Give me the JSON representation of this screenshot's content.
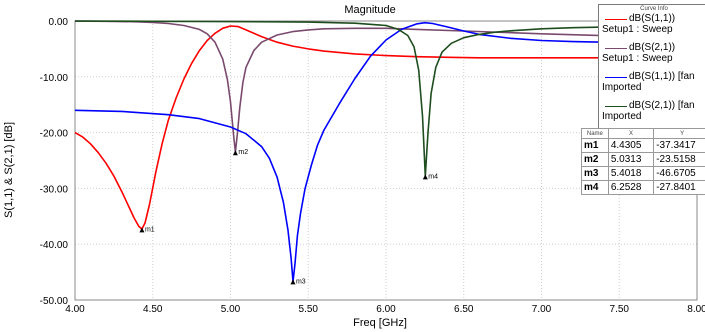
{
  "chart_data": {
    "type": "line",
    "title": "Magnitude",
    "xlabel": "Freq [GHz]",
    "ylabel": "S(1,1) & S(2,1) [dB]",
    "xlim": [
      4.0,
      8.0
    ],
    "ylim": [
      -50.0,
      0.0
    ],
    "x_ticks": [
      "4.00",
      "4.50",
      "5.00",
      "5.50",
      "6.00",
      "6.50",
      "7.00",
      "7.50",
      "8.00"
    ],
    "y_ticks": [
      "0.00",
      "-10.00",
      "-20.00",
      "-30.00",
      "-40.00",
      "-50.00"
    ],
    "grid": true,
    "legend_position": "top-right",
    "legend_title": "Curve Info",
    "series": [
      {
        "name": "dB(S(1,1))",
        "sub": "Setup1 : Sweep",
        "color": "#ff0000",
        "x": [
          4.0,
          4.05,
          4.1,
          4.15,
          4.2,
          4.25,
          4.3,
          4.35,
          4.38,
          4.41,
          4.4305,
          4.45,
          4.48,
          4.52,
          4.56,
          4.6,
          4.65,
          4.7,
          4.75,
          4.8,
          4.85,
          4.9,
          4.95,
          5.0,
          5.05,
          5.1,
          5.2,
          5.3,
          5.4,
          5.5,
          5.6,
          5.8,
          6.0,
          6.2,
          6.4,
          6.6,
          6.8,
          7.0,
          7.2,
          7.4,
          7.6,
          7.8,
          8.0
        ],
        "y": [
          -20.0,
          -20.8,
          -22.0,
          -23.6,
          -25.5,
          -27.8,
          -30.5,
          -33.5,
          -35.3,
          -36.8,
          -37.3,
          -36.2,
          -32.8,
          -27.0,
          -22.0,
          -17.8,
          -13.8,
          -10.4,
          -7.6,
          -5.3,
          -3.5,
          -2.2,
          -1.3,
          -0.9,
          -1.0,
          -1.6,
          -2.8,
          -3.8,
          -4.5,
          -5.0,
          -5.4,
          -5.9,
          -6.2,
          -6.4,
          -6.5,
          -6.6,
          -6.6,
          -6.6,
          -6.6,
          -6.6,
          -6.6,
          -6.6,
          -6.6
        ]
      },
      {
        "name": "dB(S(2,1))",
        "sub": "Setup1 : Sweep",
        "color": "#7a4a6e",
        "x": [
          4.0,
          4.2,
          4.4,
          4.5,
          4.6,
          4.7,
          4.8,
          4.85,
          4.9,
          4.95,
          4.98,
          5.0,
          5.02,
          5.0313,
          5.045,
          5.06,
          5.08,
          5.1,
          5.15,
          5.2,
          5.3,
          5.4,
          5.5,
          5.6,
          5.8,
          6.0,
          6.2,
          6.5,
          7.0,
          7.5,
          8.0
        ],
        "y": [
          -0.02,
          -0.05,
          -0.15,
          -0.25,
          -0.45,
          -0.8,
          -1.5,
          -2.3,
          -3.8,
          -6.8,
          -10.5,
          -14.5,
          -20.5,
          -23.5,
          -20.0,
          -15.5,
          -11.0,
          -8.3,
          -5.3,
          -3.8,
          -2.5,
          -1.9,
          -1.6,
          -1.4,
          -1.3,
          -1.3,
          -1.5,
          -1.8,
          -2.3,
          -2.7,
          -3.0
        ]
      },
      {
        "name": "dB(S(1,1)) [fan",
        "sub": "Imported",
        "color": "#0000ff",
        "x": [
          4.0,
          4.3,
          4.6,
          4.8,
          5.0,
          5.1,
          5.2,
          5.25,
          5.3,
          5.34,
          5.37,
          5.39,
          5.4018,
          5.415,
          5.43,
          5.45,
          5.48,
          5.52,
          5.56,
          5.6,
          5.7,
          5.8,
          5.9,
          6.0,
          6.1,
          6.2,
          6.25,
          6.3,
          6.4,
          6.5,
          6.6,
          6.8,
          7.0,
          7.2,
          7.4,
          7.6,
          7.8,
          8.0
        ],
        "y": [
          -16.0,
          -16.2,
          -16.8,
          -17.5,
          -19.0,
          -20.2,
          -22.5,
          -24.6,
          -28.0,
          -32.5,
          -37.5,
          -42.5,
          -46.7,
          -43.5,
          -38.5,
          -34.5,
          -30.0,
          -25.8,
          -22.2,
          -19.6,
          -14.8,
          -10.3,
          -6.3,
          -3.4,
          -1.5,
          -0.5,
          -0.3,
          -0.45,
          -1.1,
          -1.8,
          -2.4,
          -3.1,
          -3.5,
          -3.7,
          -3.8,
          -3.8,
          -3.8,
          -3.8
        ]
      },
      {
        "name": "dB(S(2,1)) [fan",
        "sub": "Imported",
        "color": "#1e4d1e",
        "x": [
          4.0,
          4.5,
          5.0,
          5.5,
          5.8,
          6.0,
          6.08,
          6.14,
          6.18,
          6.21,
          6.235,
          6.2528,
          6.27,
          6.29,
          6.32,
          6.36,
          6.42,
          6.5,
          6.6,
          6.7,
          6.8,
          7.0,
          7.2,
          7.4,
          7.6,
          7.8,
          8.0
        ],
        "y": [
          -0.02,
          -0.05,
          -0.1,
          -0.2,
          -0.4,
          -0.8,
          -1.5,
          -2.6,
          -4.6,
          -8.8,
          -17.0,
          -27.8,
          -20.0,
          -13.0,
          -8.3,
          -5.6,
          -4.0,
          -3.0,
          -2.4,
          -2.0,
          -1.75,
          -1.4,
          -1.2,
          -1.1,
          -1.0,
          -0.95,
          -0.9
        ]
      }
    ],
    "markers": [
      {
        "name": "m1",
        "label": "m1",
        "x": "4.4305",
        "y": "-37.3417",
        "xv": 4.4305,
        "yv": -37.3417
      },
      {
        "name": "m2",
        "label": "m2",
        "x": "5.0313",
        "y": "-23.5158",
        "xv": 5.0313,
        "yv": -23.5158
      },
      {
        "name": "m3",
        "label": "m3",
        "x": "5.4018",
        "y": "-46.6705",
        "xv": 5.4018,
        "yv": -46.6705
      },
      {
        "name": "m4",
        "label": "m4",
        "x": "6.2528",
        "y": "-27.8401",
        "xv": 6.2528,
        "yv": -27.8401
      }
    ],
    "marker_table_headers": [
      "Name",
      "X",
      "Y"
    ]
  }
}
